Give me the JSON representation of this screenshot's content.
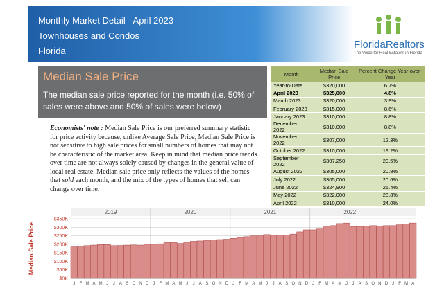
{
  "header": {
    "title_lines": [
      "Monthly Market Detail - April 2023",
      "Townhouses and Condos",
      "Florida"
    ],
    "logo": {
      "name": "FloridaRealtors",
      "tagline": "The Voice for Real Estate® in Florida"
    }
  },
  "section": {
    "title": "Median Sale Price",
    "description": "The median sale price reported for the month (i.e. 50% of sales were above and 50% of sales were below)"
  },
  "note": {
    "label": "Economists' note :",
    "text_1": "Median Sale Price is our preferred summary statistic for price activity because, unlike Average Sale Price, Median Sale Price is not sensitive to high sale prices for small numbers of homes that may not be characteristic of the market area.  Keep in mind that median price trends over time are not always solely caused by changes in the general value of local real estate.  Median sale price only reflects the values of the homes that",
    "emphasis": "sold",
    "text_2": "each month, and the mix of the types of homes that sell can change over time."
  },
  "table": {
    "columns": [
      "Month",
      "Median Sale Price",
      "Percent Change Year-over-Year"
    ],
    "rows": [
      [
        "Year-to-Date",
        "$320,000",
        "6.7%"
      ],
      [
        "April 2023",
        "$325,000",
        "4.8%"
      ],
      [
        "March 2023",
        "$320,000",
        "3.9%"
      ],
      [
        "February 2023",
        "$315,000",
        "8.6%"
      ],
      [
        "January 2023",
        "$310,000",
        "8.8%"
      ],
      [
        "December 2022",
        "$310,000",
        "8.8%"
      ],
      [
        "November 2022",
        "$307,000",
        "12.3%"
      ],
      [
        "October 2022",
        "$310,000",
        "19.2%"
      ],
      [
        "September 2022",
        "$307,250",
        "20.5%"
      ],
      [
        "August 2022",
        "$305,000",
        "20.8%"
      ],
      [
        "July 2022",
        "$305,000",
        "20.6%"
      ],
      [
        "June 2022",
        "$324,900",
        "26.4%"
      ],
      [
        "May 2022",
        "$322,000",
        "28.8%"
      ],
      [
        "April 2022",
        "$310,000",
        "24.0%"
      ]
    ]
  },
  "chart_data": {
    "type": "bar",
    "y_label": "Median Sale Price",
    "color": "#d98c8a",
    "grid": true,
    "years": [
      "2019",
      "2020",
      "2021",
      "2022"
    ],
    "categories": [
      "J",
      "F",
      "M",
      "A",
      "M",
      "J",
      "J",
      "A",
      "S",
      "O",
      "N",
      "D",
      "J",
      "F",
      "M",
      "A",
      "M",
      "J",
      "J",
      "A",
      "S",
      "O",
      "N",
      "D",
      "J",
      "F",
      "M",
      "A",
      "M",
      "J",
      "J",
      "A",
      "S",
      "O",
      "N",
      "D",
      "J",
      "F",
      "M",
      "A",
      "M",
      "J",
      "J",
      "A",
      "S",
      "O",
      "N",
      "D",
      "J",
      "F",
      "M",
      "A"
    ],
    "values": [
      185,
      188,
      192,
      195,
      198,
      198,
      192,
      193,
      195,
      196,
      195,
      200,
      200,
      203,
      210,
      210,
      205,
      212,
      218,
      220,
      222,
      225,
      228,
      230,
      235,
      240,
      245,
      250,
      250,
      257,
      253,
      253,
      255,
      260,
      273,
      285,
      285,
      290,
      308,
      310,
      322,
      325,
      305,
      305,
      307,
      310,
      307,
      310,
      310,
      315,
      320,
      325
    ],
    "ylim": [
      0,
      350
    ],
    "yticks": [
      {
        "value": 0,
        "label": "$0K"
      },
      {
        "value": 50,
        "label": "$50K"
      },
      {
        "value": 100,
        "label": "$100K"
      },
      {
        "value": 150,
        "label": "$150K"
      },
      {
        "value": 200,
        "label": "$200K"
      },
      {
        "value": 250,
        "label": "$250K"
      },
      {
        "value": 300,
        "label": "$300K"
      },
      {
        "value": 350,
        "label": "$350K"
      }
    ]
  }
}
